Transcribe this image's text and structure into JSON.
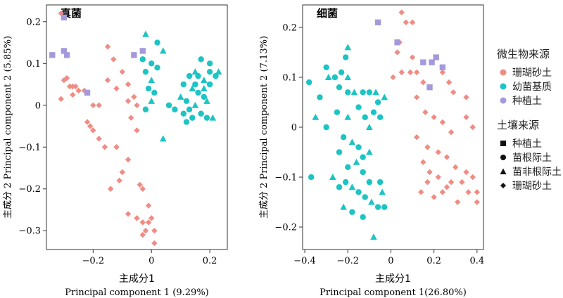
{
  "chart_data": [
    {
      "type": "scatter",
      "panel_title": "真菌",
      "xlabel_cn": "主成分1",
      "xlabel_en": "Principal component 1 (9.29%)",
      "ylabel": "主成分 2  Principal component 2 (5.85%)",
      "xlim": [
        -0.36,
        0.26
      ],
      "ylim": [
        -0.345,
        0.24
      ],
      "xticks": [
        -0.2,
        0,
        0.2
      ],
      "xtick_labels": [
        "−0.2",
        "0",
        "0.2"
      ],
      "yticks": [
        0.2,
        0.1,
        0,
        -0.1,
        -0.2,
        -0.3
      ],
      "ytick_labels": [
        "0.2",
        "0.1",
        "0",
        "−0.1",
        "−0.2",
        "−0.3"
      ],
      "series": [
        {
          "name": "珊瑚砂土",
          "color": "#F08C84",
          "marker": "diamond",
          "points": [
            [
              -0.31,
              0.22
            ],
            [
              -0.29,
              0.065
            ],
            [
              -0.3,
              0.06
            ],
            [
              -0.28,
              0.045
            ],
            [
              -0.27,
              0.045
            ],
            [
              -0.26,
              0.045
            ],
            [
              -0.25,
              0.035
            ],
            [
              -0.27,
              0.025
            ],
            [
              -0.31,
              0.015
            ],
            [
              -0.23,
              0.035
            ],
            [
              -0.2,
              0.0
            ],
            [
              -0.18,
              0.0
            ],
            [
              -0.22,
              -0.04
            ],
            [
              -0.21,
              -0.05
            ],
            [
              -0.2,
              -0.06
            ],
            [
              -0.18,
              -0.08
            ],
            [
              -0.16,
              -0.1
            ],
            [
              -0.12,
              -0.1
            ],
            [
              -0.08,
              -0.13
            ],
            [
              -0.1,
              -0.16
            ],
            [
              -0.11,
              -0.18
            ],
            [
              -0.15,
              0.14
            ],
            [
              -0.13,
              0.11
            ],
            [
              -0.1,
              0.08
            ],
            [
              -0.08,
              0.05
            ],
            [
              -0.06,
              0.02
            ],
            [
              -0.05,
              0.0
            ],
            [
              -0.15,
              0.06
            ],
            [
              -0.12,
              0.04
            ],
            [
              -0.08,
              0.01
            ],
            [
              -0.07,
              -0.03
            ],
            [
              -0.05,
              -0.06
            ],
            [
              -0.14,
              -0.2
            ],
            [
              -0.04,
              -0.19
            ],
            [
              -0.03,
              -0.2
            ],
            [
              -0.08,
              -0.26
            ],
            [
              -0.05,
              -0.27
            ],
            [
              -0.03,
              -0.28
            ],
            [
              -0.01,
              -0.24
            ],
            [
              0.0,
              -0.27
            ],
            [
              0.01,
              -0.3
            ],
            [
              -0.02,
              -0.3
            ],
            [
              -0.03,
              -0.31
            ],
            [
              0.01,
              -0.33
            ],
            [
              -0.01,
              -0.28
            ]
          ]
        },
        {
          "name": "幼苗基质",
          "color": "#1CC4C4",
          "marker": "mixed",
          "points": [
            [
              -0.02,
              0.17
            ],
            [
              0.0,
              0.1
            ],
            [
              0.02,
              0.15
            ],
            [
              0.04,
              0.13
            ],
            [
              -0.03,
              0.11
            ],
            [
              -0.02,
              0.08
            ],
            [
              0.0,
              0.06
            ],
            [
              0.02,
              0.09
            ],
            [
              -0.01,
              0.04
            ],
            [
              0.0,
              0.01
            ],
            [
              -0.02,
              -0.01
            ],
            [
              0.01,
              0.03
            ],
            [
              0.04,
              -0.08
            ],
            [
              0.06,
              0.0
            ],
            [
              0.08,
              -0.01
            ],
            [
              0.1,
              0.02
            ],
            [
              0.12,
              0.01
            ],
            [
              0.15,
              0.05
            ],
            [
              0.18,
              0.06
            ],
            [
              0.2,
              0.08
            ],
            [
              0.22,
              0.07
            ],
            [
              0.23,
              0.08
            ],
            [
              0.2,
              0.1
            ],
            [
              0.17,
              0.11
            ],
            [
              0.15,
              0.08
            ],
            [
              0.13,
              0.07
            ],
            [
              0.11,
              0.05
            ],
            [
              0.14,
              0.04
            ],
            [
              0.16,
              0.03
            ],
            [
              0.18,
              0.02
            ],
            [
              0.19,
              0.01
            ],
            [
              0.13,
              -0.01
            ],
            [
              0.11,
              -0.02
            ],
            [
              0.15,
              0.0
            ],
            [
              0.17,
              -0.02
            ],
            [
              0.19,
              -0.03
            ],
            [
              0.21,
              -0.03
            ],
            [
              0.14,
              -0.03
            ],
            [
              0.12,
              -0.04
            ],
            [
              0.18,
              0.04
            ],
            [
              0.2,
              0.05
            ],
            [
              0.16,
              0.07
            ]
          ]
        },
        {
          "name": "种植土",
          "color": "#A49ADB",
          "marker": "square",
          "points": [
            [
              -0.3,
              0.21
            ],
            [
              -0.34,
              0.12
            ],
            [
              -0.3,
              0.13
            ],
            [
              -0.29,
              0.12
            ],
            [
              -0.22,
              0.03
            ],
            [
              -0.03,
              0.13
            ],
            [
              -0.06,
              0.12
            ]
          ]
        }
      ]
    },
    {
      "type": "scatter",
      "panel_title": "细菌",
      "xlabel_cn": "主成分1",
      "xlabel_en": "Principal component 1(26.80%)",
      "ylabel": "主成分 2  Principal component 2 (7.13%)",
      "xlim": [
        -0.41,
        0.43
      ],
      "ylim": [
        -0.245,
        0.245
      ],
      "xticks": [
        -0.4,
        -0.2,
        0,
        0.2,
        0.4
      ],
      "xtick_labels": [
        "−0.4",
        "−0.2",
        "0",
        "0.2",
        "0.4"
      ],
      "yticks": [
        0.2,
        0.1,
        0,
        -0.1,
        -0.2
      ],
      "ytick_labels": [
        "0.2",
        "0.1",
        "0",
        "−0.1",
        "−0.2"
      ],
      "series": [
        {
          "name": "珊瑚砂土",
          "color": "#F08C84",
          "marker": "diamond",
          "points": [
            [
              0.05,
              0.23
            ],
            [
              0.07,
              0.21
            ],
            [
              0.04,
              0.17
            ],
            [
              0.1,
              0.21
            ],
            [
              0.03,
              0.15
            ],
            [
              0.01,
              0.1
            ],
            [
              0.05,
              0.11
            ],
            [
              0.09,
              0.11
            ],
            [
              0.1,
              0.14
            ],
            [
              0.12,
              0.11
            ],
            [
              0.15,
              0.09
            ],
            [
              0.18,
              0.08
            ],
            [
              0.24,
              0.11
            ],
            [
              0.27,
              0.09
            ],
            [
              0.29,
              0.07
            ],
            [
              0.35,
              0.06
            ],
            [
              0.12,
              0.06
            ],
            [
              0.16,
              0.03
            ],
            [
              0.2,
              0.02
            ],
            [
              0.24,
              0.01
            ],
            [
              0.28,
              -0.01
            ],
            [
              0.35,
              0.02
            ],
            [
              0.38,
              0.0
            ],
            [
              0.12,
              -0.02
            ],
            [
              0.17,
              -0.04
            ],
            [
              0.22,
              -0.05
            ],
            [
              0.26,
              -0.06
            ],
            [
              0.3,
              -0.08
            ],
            [
              0.35,
              -0.09
            ],
            [
              0.38,
              -0.1
            ],
            [
              0.15,
              -0.07
            ],
            [
              0.18,
              -0.09
            ],
            [
              0.22,
              -0.1
            ],
            [
              0.26,
              -0.12
            ],
            [
              0.31,
              -0.15
            ],
            [
              0.36,
              -0.13
            ],
            [
              0.4,
              -0.15
            ],
            [
              0.14,
              -0.13
            ],
            [
              0.17,
              -0.11
            ],
            [
              0.2,
              -0.14
            ],
            [
              0.24,
              -0.13
            ],
            [
              0.28,
              -0.11
            ],
            [
              0.33,
              -0.11
            ],
            [
              0.4,
              -0.13
            ]
          ]
        },
        {
          "name": "幼苗基质",
          "color": "#1CC4C4",
          "marker": "mixed",
          "points": [
            [
              -0.2,
              0.16
            ],
            [
              -0.21,
              0.14
            ],
            [
              -0.3,
              0.12
            ],
            [
              -0.29,
              0.1
            ],
            [
              -0.26,
              0.1
            ],
            [
              -0.23,
              0.11
            ],
            [
              -0.2,
              0.1
            ],
            [
              -0.24,
              0.08
            ],
            [
              -0.2,
              0.07
            ],
            [
              -0.17,
              0.07
            ],
            [
              -0.13,
              0.07
            ],
            [
              -0.1,
              0.07
            ],
            [
              -0.07,
              0.07
            ],
            [
              -0.38,
              0.09
            ],
            [
              -0.33,
              0.06
            ],
            [
              -0.35,
              0.02
            ],
            [
              -0.3,
              0.0
            ],
            [
              -0.25,
              0.03
            ],
            [
              -0.2,
              0.02
            ],
            [
              -0.15,
              0.04
            ],
            [
              -0.12,
              0.02
            ],
            [
              -0.1,
              0.0
            ],
            [
              -0.08,
              0.03
            ],
            [
              -0.06,
              0.05
            ],
            [
              -0.03,
              0.06
            ],
            [
              -0.05,
              0.02
            ],
            [
              -0.22,
              -0.02
            ],
            [
              -0.18,
              -0.03
            ],
            [
              -0.15,
              -0.04
            ],
            [
              -0.13,
              -0.06
            ],
            [
              -0.1,
              -0.05
            ],
            [
              -0.24,
              -0.05
            ],
            [
              -0.2,
              -0.08
            ],
            [
              -0.16,
              -0.07
            ],
            [
              -0.13,
              -0.09
            ],
            [
              -0.1,
              -0.11
            ],
            [
              -0.27,
              -0.1
            ],
            [
              -0.24,
              -0.12
            ],
            [
              -0.21,
              -0.11
            ],
            [
              -0.18,
              -0.12
            ],
            [
              -0.15,
              -0.13
            ],
            [
              -0.12,
              -0.14
            ],
            [
              -0.09,
              -0.15
            ],
            [
              -0.06,
              -0.16
            ],
            [
              -0.03,
              -0.16
            ],
            [
              -0.22,
              -0.16
            ],
            [
              -0.18,
              -0.17
            ],
            [
              -0.13,
              -0.18
            ],
            [
              -0.08,
              -0.22
            ],
            [
              -0.37,
              -0.1
            ],
            [
              -0.05,
              -0.11
            ],
            [
              -0.04,
              -0.13
            ]
          ]
        },
        {
          "name": "种植土",
          "color": "#A49ADB",
          "marker": "square",
          "points": [
            [
              -0.06,
              0.21
            ],
            [
              0.03,
              0.17
            ],
            [
              0.15,
              0.13
            ],
            [
              0.19,
              0.13
            ],
            [
              0.21,
              0.14
            ],
            [
              0.24,
              0.12
            ],
            [
              0.18,
              0.08
            ]
          ]
        }
      ]
    }
  ],
  "legend": {
    "source_title": "微生物来源",
    "source_items": [
      {
        "label": "珊瑚砂土",
        "color": "#F08C84"
      },
      {
        "label": "幼苗基质",
        "color": "#1CC4C4"
      },
      {
        "label": "种植土",
        "color": "#A49ADB"
      }
    ],
    "soil_title": "土壤来源",
    "soil_items": [
      {
        "label": "种植土",
        "marker": "square"
      },
      {
        "label": "苗根际土",
        "marker": "circle"
      },
      {
        "label": "苗非根际土",
        "marker": "triangle"
      },
      {
        "label": "珊瑚砂土",
        "marker": "diamond"
      }
    ]
  }
}
